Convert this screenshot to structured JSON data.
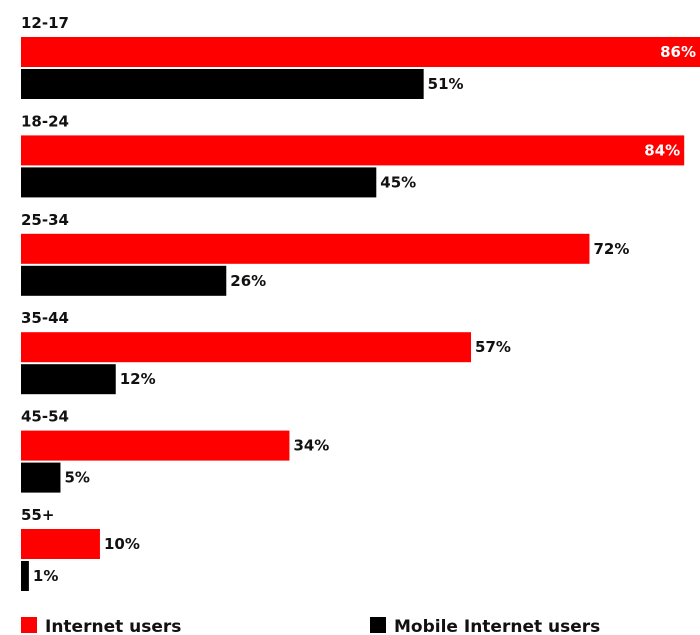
{
  "chart_data": {
    "type": "bar",
    "orientation": "horizontal",
    "categories": [
      "12-17",
      "18-24",
      "25-34",
      "35-44",
      "45-54",
      "55+"
    ],
    "series": [
      {
        "name": "Internet users",
        "color": "#ff0000",
        "values": [
          86,
          84,
          72,
          57,
          34,
          10
        ]
      },
      {
        "name": "Mobile Internet users",
        "color": "#000000",
        "values": [
          51,
          45,
          26,
          12,
          5,
          1
        ]
      }
    ],
    "value_suffix": "%",
    "xlim": [
      0,
      86
    ],
    "grid": false,
    "legend_position": "bottom"
  }
}
